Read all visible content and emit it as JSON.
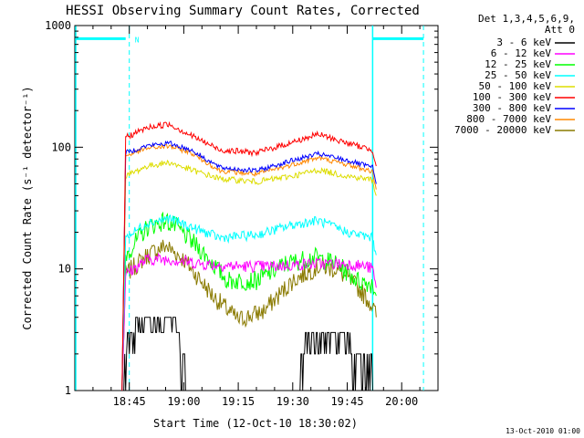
{
  "chart_data": {
    "type": "line",
    "title": "HESSI Observing Summary Count Rates, Corrected",
    "xlabel": "Start Time (12-Oct-10 18:30:02)",
    "ylabel": "Corrected Count Rate (s⁻¹ detector⁻¹)",
    "yscale": "log",
    "ylim": [
      1,
      1000
    ],
    "xlim": [
      "18:30",
      "20:10"
    ],
    "x_ticks": [
      "18:45",
      "19:00",
      "19:15",
      "19:30",
      "19:45",
      "20:00"
    ],
    "y_ticks": [
      "1",
      "10",
      "100",
      "1000"
    ],
    "legend_header": [
      "Det 1,3,4,5,6,9,",
      "Att 0"
    ],
    "legend_position": "right",
    "timestamp": "13-Oct-2010 01:00",
    "night_flag": "N",
    "data_window": [
      "18:43",
      "19:53"
    ],
    "series": [
      {
        "name": "3 - 6 keV",
        "color": "#000000",
        "points": [
          [
            "18:43",
            1.0
          ],
          [
            "18:45",
            2.3
          ],
          [
            "18:50",
            3.0
          ],
          [
            "18:55",
            3.0
          ],
          [
            "18:58",
            2.5
          ],
          [
            "19:01",
            1.0
          ],
          [
            "19:31",
            1.0
          ],
          [
            "19:34",
            2.0
          ],
          [
            "19:45",
            2.0
          ],
          [
            "19:48",
            1.5
          ],
          [
            "19:52",
            1.5
          ]
        ]
      },
      {
        "name": "6 - 12 keV",
        "color": "#ff00ff",
        "points": [
          [
            "18:43",
            1.0
          ],
          [
            "18:44",
            9.0
          ],
          [
            "18:50",
            12.0
          ],
          [
            "18:56",
            12.0
          ],
          [
            "19:05",
            11.0
          ],
          [
            "19:15",
            10.5
          ],
          [
            "19:25",
            10.5
          ],
          [
            "19:35",
            11.0
          ],
          [
            "19:45",
            11.0
          ],
          [
            "19:50",
            10.5
          ],
          [
            "19:52",
            10.0
          ],
          [
            "19:53",
            7.0
          ]
        ]
      },
      {
        "name": "12 - 25 keV",
        "color": "#00ff00",
        "points": [
          [
            "18:43",
            1.0
          ],
          [
            "18:44",
            13.0
          ],
          [
            "18:50",
            22.0
          ],
          [
            "18:55",
            25.0
          ],
          [
            "18:58",
            22.0
          ],
          [
            "19:05",
            14.0
          ],
          [
            "19:12",
            8.0
          ],
          [
            "19:20",
            8.0
          ],
          [
            "19:28",
            11.0
          ],
          [
            "19:36",
            12.5
          ],
          [
            "19:42",
            11.0
          ],
          [
            "19:48",
            8.0
          ],
          [
            "19:52",
            7.5
          ],
          [
            "19:53",
            6.0
          ]
        ]
      },
      {
        "name": "25 - 50 keV",
        "color": "#00ffff",
        "points": [
          [
            "18:43",
            1.0
          ],
          [
            "18:44",
            18.0
          ],
          [
            "18:50",
            24.0
          ],
          [
            "18:56",
            26.0
          ],
          [
            "19:02",
            22.0
          ],
          [
            "19:10",
            18.0
          ],
          [
            "19:20",
            19.0
          ],
          [
            "19:30",
            23.0
          ],
          [
            "19:37",
            25.0
          ],
          [
            "19:45",
            20.0
          ],
          [
            "19:52",
            18.0
          ],
          [
            "19:53",
            13.0
          ]
        ]
      },
      {
        "name": "50 - 100 keV",
        "color": "#dddd00",
        "points": [
          [
            "18:43",
            1.0
          ],
          [
            "18:44",
            58.0
          ],
          [
            "18:50",
            70.0
          ],
          [
            "18:56",
            75.0
          ],
          [
            "19:02",
            65.0
          ],
          [
            "19:10",
            55.0
          ],
          [
            "19:20",
            52.0
          ],
          [
            "19:30",
            58.0
          ],
          [
            "19:37",
            65.0
          ],
          [
            "19:45",
            58.0
          ],
          [
            "19:52",
            54.0
          ],
          [
            "19:53",
            40.0
          ]
        ]
      },
      {
        "name": "100 - 300 keV",
        "color": "#ff0000",
        "points": [
          [
            "18:43",
            1.0
          ],
          [
            "18:44",
            120.0
          ],
          [
            "18:50",
            145.0
          ],
          [
            "18:56",
            155.0
          ],
          [
            "19:02",
            125.0
          ],
          [
            "19:10",
            95.0
          ],
          [
            "19:20",
            90.0
          ],
          [
            "19:30",
            110.0
          ],
          [
            "19:37",
            128.0
          ],
          [
            "19:45",
            108.0
          ],
          [
            "19:52",
            95.0
          ],
          [
            "19:53",
            70.0
          ]
        ]
      },
      {
        "name": "300 - 800 keV",
        "color": "#0000ff",
        "points": [
          [
            "18:43",
            1.0
          ],
          [
            "18:44",
            90.0
          ],
          [
            "18:50",
            103.0
          ],
          [
            "18:56",
            108.0
          ],
          [
            "19:02",
            95.0
          ],
          [
            "19:10",
            68.0
          ],
          [
            "19:20",
            64.0
          ],
          [
            "19:30",
            78.0
          ],
          [
            "19:37",
            88.0
          ],
          [
            "19:45",
            78.0
          ],
          [
            "19:52",
            68.0
          ],
          [
            "19:53",
            50.0
          ]
        ]
      },
      {
        "name": "800 - 7000 keV",
        "color": "#ff8800",
        "points": [
          [
            "18:43",
            1.0
          ],
          [
            "18:44",
            85.0
          ],
          [
            "18:50",
            98.0
          ],
          [
            "18:56",
            102.0
          ],
          [
            "19:02",
            90.0
          ],
          [
            "19:10",
            64.0
          ],
          [
            "19:20",
            60.0
          ],
          [
            "19:30",
            72.0
          ],
          [
            "19:37",
            82.0
          ],
          [
            "19:45",
            72.0
          ],
          [
            "19:52",
            63.0
          ],
          [
            "19:53",
            45.0
          ]
        ]
      },
      {
        "name": "7000 - 20000 keV",
        "color": "#8a7a00",
        "points": [
          [
            "18:43",
            1.0
          ],
          [
            "18:44",
            9.0
          ],
          [
            "18:50",
            13.0
          ],
          [
            "18:55",
            15.5
          ],
          [
            "19:00",
            12.0
          ],
          [
            "19:08",
            6.0
          ],
          [
            "19:15",
            3.8
          ],
          [
            "19:22",
            4.5
          ],
          [
            "19:30",
            8.0
          ],
          [
            "19:37",
            10.5
          ],
          [
            "19:42",
            10.0
          ],
          [
            "19:48",
            7.0
          ],
          [
            "19:52",
            5.0
          ],
          [
            "19:53",
            4.0
          ]
        ]
      }
    ]
  }
}
